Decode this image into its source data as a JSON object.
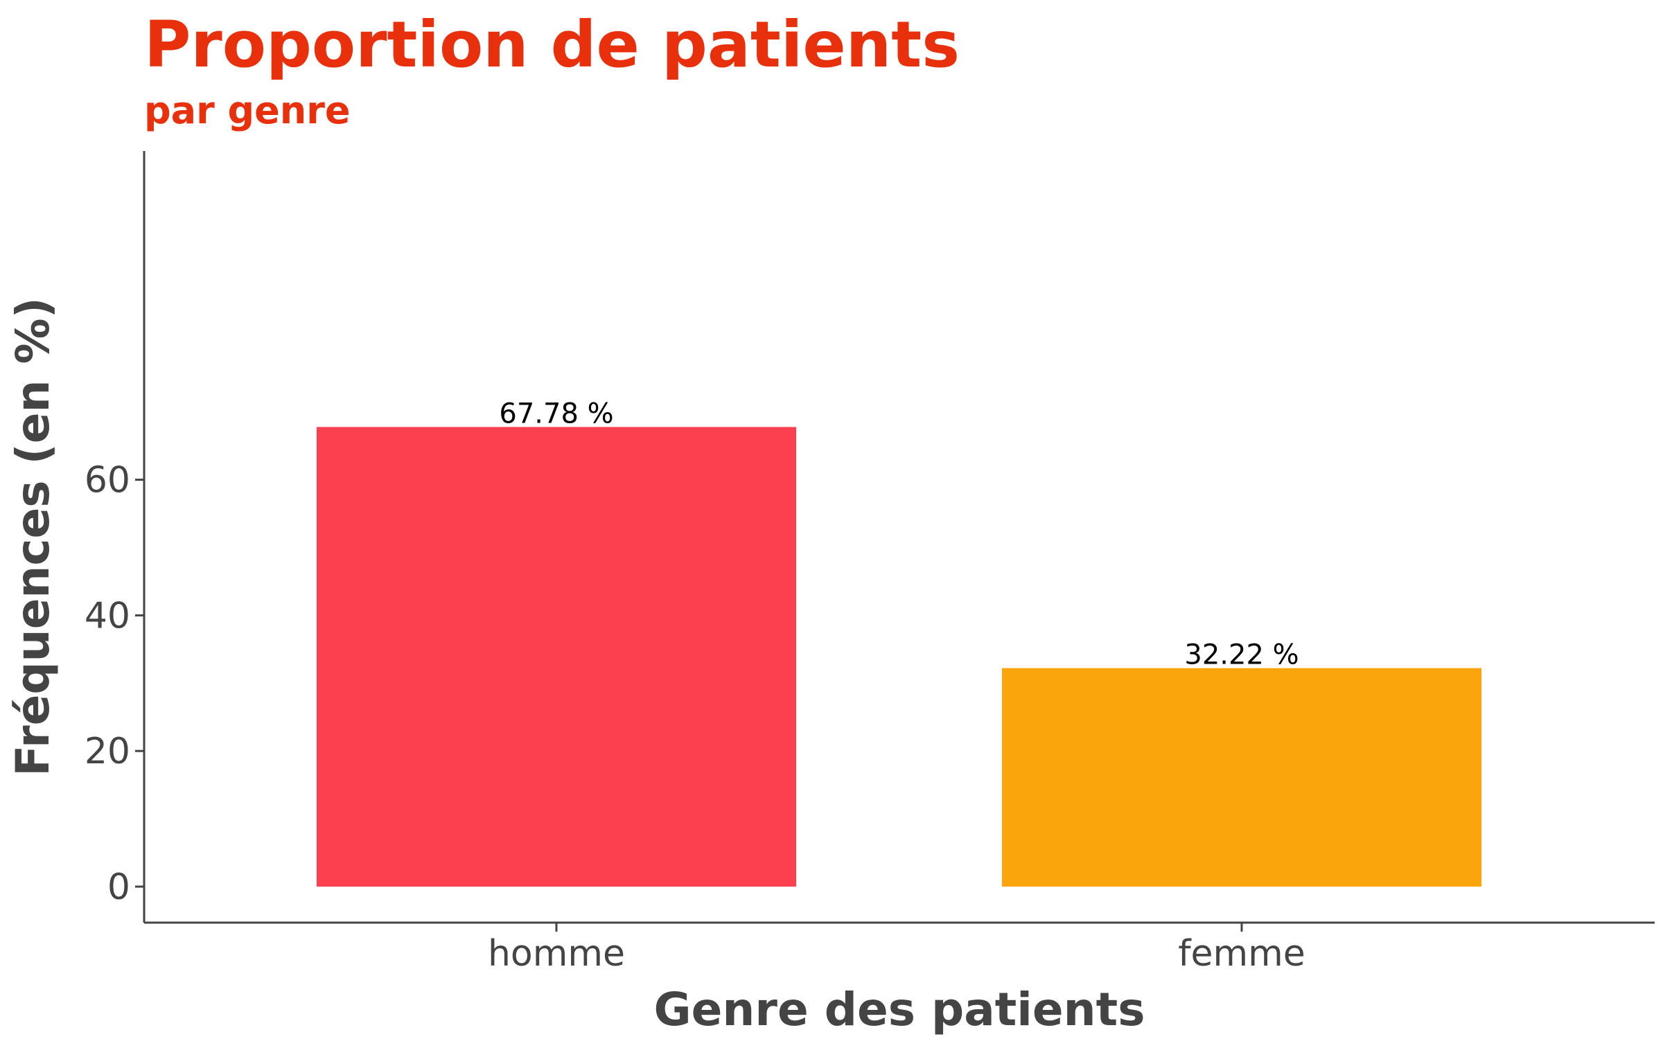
{
  "chart_data": {
    "type": "bar",
    "title": "Proportion de patients",
    "subtitle": "par genre",
    "xlabel": "Genre des patients",
    "ylabel": "Fréquences (en %)",
    "categories": [
      "homme",
      "femme"
    ],
    "values": [
      67.78,
      32.22
    ],
    "value_labels": [
      "67.78 %",
      "32.22 %"
    ],
    "colors": [
      "#fd404f",
      "#fba50d"
    ],
    "yticks": [
      "0",
      "20",
      "40",
      "60"
    ],
    "ylim": [
      0,
      71
    ],
    "grid": false,
    "legend": "none"
  }
}
